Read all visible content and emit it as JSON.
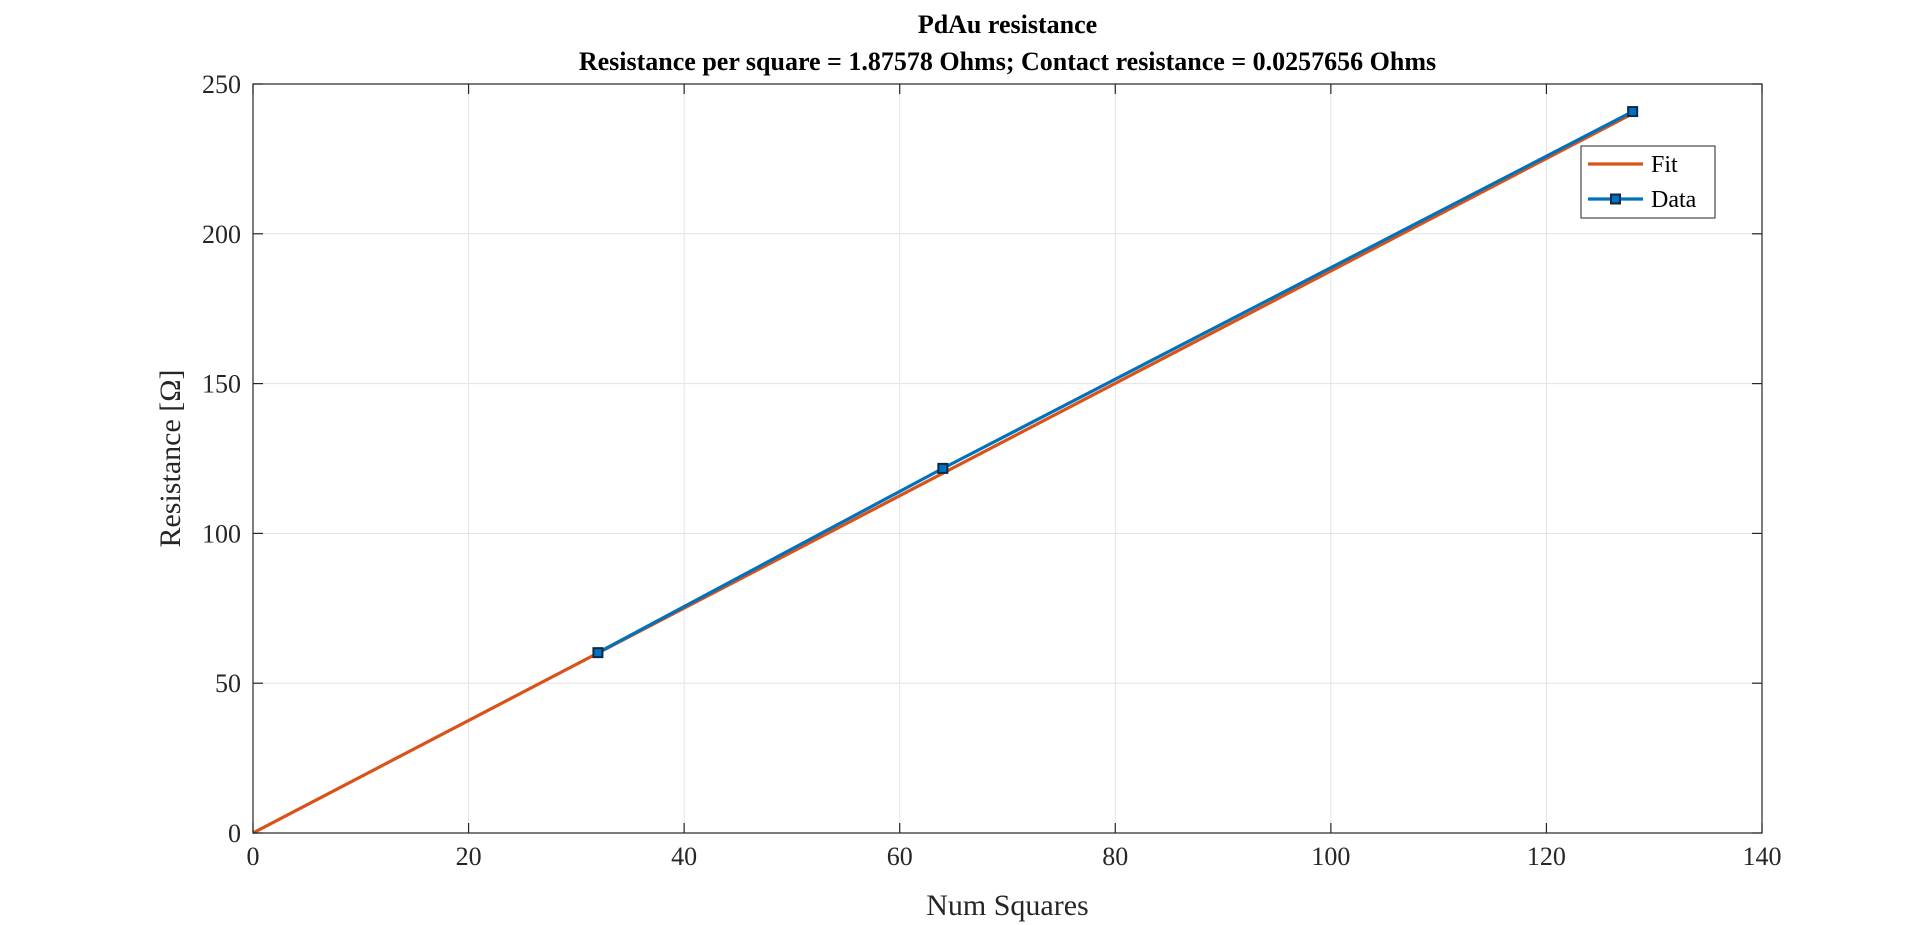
{
  "chart_data": {
    "type": "line",
    "title": "PdAu resistance",
    "subtitle": "Resistance per square = 1.87578 Ohms; Contact resistance = 0.0257656 Ohms",
    "xlabel": "Num Squares",
    "ylabel": "Resistance [Ω]",
    "xlim": [
      0,
      140
    ],
    "ylim": [
      0,
      250
    ],
    "xticks": [
      0,
      20,
      40,
      60,
      80,
      100,
      120,
      140
    ],
    "yticks": [
      0,
      50,
      100,
      150,
      200,
      250
    ],
    "xtick_labels": [
      "0",
      "20",
      "40",
      "60",
      "80",
      "100",
      "120",
      "140"
    ],
    "ytick_labels": [
      "0",
      "50",
      "100",
      "150",
      "200",
      "250"
    ],
    "grid": true,
    "legend_position": "top-right",
    "series": [
      {
        "name": "Fit",
        "color": "#D95319",
        "marker": "none",
        "x": [
          0,
          128
        ],
        "y": [
          0.0257656,
          240.1256
        ]
      },
      {
        "name": "Data",
        "color": "#0072BD",
        "marker": "square",
        "x": [
          32,
          64,
          128
        ],
        "y": [
          60.2,
          121.7,
          240.8
        ]
      }
    ]
  }
}
